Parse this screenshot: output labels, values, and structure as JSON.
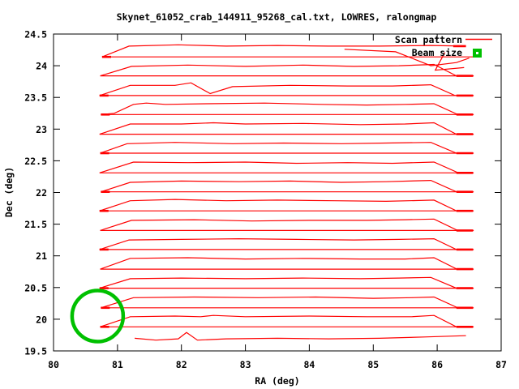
{
  "window": {
    "background": "#ffffff"
  },
  "chart_data": {
    "type": "line",
    "title": "Skynet_61052_crab_144911_95268_cal.txt, LOWRES, ralongmap",
    "xlabel": "RA (deg)",
    "ylabel": "Dec (deg)",
    "xlim": [
      80,
      87
    ],
    "ylim": [
      19.5,
      24.5
    ],
    "xticks": [
      80,
      81,
      82,
      83,
      84,
      85,
      86,
      87
    ],
    "xtick_labels": [
      "80",
      "81",
      "82",
      "83",
      "84",
      "85",
      "86",
      "87"
    ],
    "yticks": [
      19.5,
      20,
      20.5,
      21,
      21.5,
      22,
      22.5,
      23,
      23.5,
      24,
      24.5
    ],
    "ytick_labels": [
      "19.5",
      "20",
      "20.5",
      "21",
      "21.5",
      "22",
      "22.5",
      "23",
      "23.5",
      "24",
      "24.5"
    ],
    "grid": false,
    "legend_position": "top-right-inside",
    "legend": [
      {
        "label": "Scan pattern",
        "color": "#ff0000",
        "sample": "line"
      },
      {
        "label": "Beam size",
        "color": "#00c000",
        "sample": "filled-square"
      }
    ],
    "colors": {
      "scan": "#ff0000",
      "beam": "#00c000",
      "axis": "#000000"
    },
    "scan_rows": [
      {
        "dec": 24.14,
        "ra_start": 80.76,
        "ra_end": 86.57,
        "left_cap": true,
        "right_cap": "top",
        "top_path": [
          [
            80.76,
            0
          ],
          [
            81.18,
            0.17
          ],
          [
            81.95,
            0.19
          ],
          [
            82.7,
            0.17
          ],
          [
            83.5,
            0.18
          ],
          [
            84.3,
            0.17
          ],
          [
            85.1,
            0.17
          ],
          [
            85.9,
            0.18
          ],
          [
            86.42,
            0.17
          ]
        ]
      },
      {
        "dec": 23.84,
        "ra_start": 80.73,
        "ra_end": 86.57,
        "left_cap": false,
        "right_cap": "base",
        "top_path": [
          [
            80.73,
            0
          ],
          [
            81.22,
            0.15
          ],
          [
            82.1,
            0.17
          ],
          [
            83.0,
            0.15
          ],
          [
            83.9,
            0.17
          ],
          [
            84.7,
            0.15
          ],
          [
            85.4,
            0.16
          ],
          [
            85.95,
            0.18
          ],
          [
            86.3,
            0
          ],
          [
            86.56,
            0
          ]
        ]
      },
      {
        "dec": 23.53,
        "ra_start": 80.72,
        "ra_end": 86.57,
        "left_cap": true,
        "right_cap": "base",
        "top_path": [
          [
            80.72,
            0
          ],
          [
            81.2,
            0.16
          ],
          [
            81.9,
            0.16
          ],
          [
            82.15,
            0.2
          ],
          [
            82.45,
            0.03
          ],
          [
            82.8,
            0.14
          ],
          [
            83.7,
            0.16
          ],
          [
            84.6,
            0.15
          ],
          [
            85.3,
            0.15
          ],
          [
            85.9,
            0.17
          ],
          [
            86.28,
            0
          ],
          [
            86.56,
            0
          ]
        ]
      },
      {
        "dec": 23.23,
        "ra_start": 80.74,
        "ra_end": 86.57,
        "left_cap": true,
        "right_cap": "base",
        "top_path": [
          [
            80.74,
            0
          ],
          [
            80.95,
            0.02
          ],
          [
            81.25,
            0.16
          ],
          [
            81.45,
            0.18
          ],
          [
            81.75,
            0.16
          ],
          [
            82.4,
            0.17
          ],
          [
            83.3,
            0.18
          ],
          [
            84.2,
            0.16
          ],
          [
            84.9,
            0.15
          ],
          [
            85.5,
            0.16
          ],
          [
            85.95,
            0.17
          ],
          [
            86.32,
            0
          ],
          [
            86.56,
            0
          ]
        ]
      },
      {
        "dec": 22.92,
        "ra_start": 80.72,
        "ra_end": 86.57,
        "left_cap": false,
        "right_cap": "base",
        "top_path": [
          [
            80.72,
            0
          ],
          [
            81.2,
            0.16
          ],
          [
            82.0,
            0.16
          ],
          [
            82.5,
            0.18
          ],
          [
            83.0,
            0.16
          ],
          [
            83.9,
            0.17
          ],
          [
            84.8,
            0.15
          ],
          [
            85.5,
            0.16
          ],
          [
            85.95,
            0.18
          ],
          [
            86.3,
            0
          ],
          [
            86.55,
            0
          ]
        ]
      },
      {
        "dec": 22.62,
        "ra_start": 80.73,
        "ra_end": 86.57,
        "left_cap": true,
        "right_cap": "base",
        "top_path": [
          [
            80.73,
            0
          ],
          [
            81.15,
            0.15
          ],
          [
            81.9,
            0.17
          ],
          [
            82.8,
            0.15
          ],
          [
            83.6,
            0.16
          ],
          [
            84.5,
            0.15
          ],
          [
            85.2,
            0.16
          ],
          [
            85.9,
            0.17
          ],
          [
            86.3,
            0
          ],
          [
            86.56,
            0
          ]
        ]
      },
      {
        "dec": 22.31,
        "ra_start": 80.72,
        "ra_end": 86.57,
        "left_cap": false,
        "right_cap": "base",
        "top_path": [
          [
            80.72,
            0
          ],
          [
            81.25,
            0.17
          ],
          [
            82.1,
            0.16
          ],
          [
            83.0,
            0.17
          ],
          [
            83.8,
            0.15
          ],
          [
            84.6,
            0.16
          ],
          [
            85.3,
            0.15
          ],
          [
            85.95,
            0.17
          ],
          [
            86.33,
            0
          ],
          [
            86.56,
            0
          ]
        ]
      },
      {
        "dec": 22.01,
        "ra_start": 80.74,
        "ra_end": 86.57,
        "left_cap": true,
        "right_cap": "base",
        "top_path": [
          [
            80.74,
            0
          ],
          [
            81.2,
            0.15
          ],
          [
            82.0,
            0.17
          ],
          [
            82.9,
            0.16
          ],
          [
            83.7,
            0.17
          ],
          [
            84.5,
            0.15
          ],
          [
            85.2,
            0.16
          ],
          [
            85.9,
            0.18
          ],
          [
            86.3,
            0
          ],
          [
            86.55,
            0
          ]
        ]
      },
      {
        "dec": 21.71,
        "ra_start": 80.72,
        "ra_end": 86.57,
        "left_cap": true,
        "right_cap": "base",
        "top_path": [
          [
            80.72,
            0
          ],
          [
            81.2,
            0.16
          ],
          [
            81.9,
            0.18
          ],
          [
            82.7,
            0.16
          ],
          [
            83.5,
            0.17
          ],
          [
            84.4,
            0.16
          ],
          [
            85.2,
            0.15
          ],
          [
            85.95,
            0.17
          ],
          [
            86.3,
            0
          ],
          [
            86.56,
            0
          ]
        ]
      },
      {
        "dec": 21.4,
        "ra_start": 80.73,
        "ra_end": 86.57,
        "left_cap": false,
        "right_cap": "base",
        "top_path": [
          [
            80.73,
            0
          ],
          [
            81.22,
            0.16
          ],
          [
            82.2,
            0.17
          ],
          [
            83.1,
            0.15
          ],
          [
            84.0,
            0.16
          ],
          [
            84.9,
            0.16
          ],
          [
            85.5,
            0.17
          ],
          [
            85.95,
            0.18
          ],
          [
            86.32,
            0
          ],
          [
            86.56,
            0
          ]
        ]
      },
      {
        "dec": 21.1,
        "ra_start": 80.72,
        "ra_end": 86.57,
        "left_cap": true,
        "right_cap": "base",
        "top_path": [
          [
            80.72,
            0
          ],
          [
            81.18,
            0.15
          ],
          [
            82.0,
            0.16
          ],
          [
            82.9,
            0.17
          ],
          [
            83.8,
            0.16
          ],
          [
            84.7,
            0.15
          ],
          [
            85.4,
            0.16
          ],
          [
            85.95,
            0.17
          ],
          [
            86.3,
            0
          ],
          [
            86.55,
            0
          ]
        ]
      },
      {
        "dec": 20.79,
        "ra_start": 80.73,
        "ra_end": 86.57,
        "left_cap": false,
        "right_cap": "base",
        "top_path": [
          [
            80.73,
            0
          ],
          [
            81.2,
            0.17
          ],
          [
            82.1,
            0.18
          ],
          [
            83.0,
            0.16
          ],
          [
            83.9,
            0.17
          ],
          [
            84.8,
            0.16
          ],
          [
            85.5,
            0.16
          ],
          [
            85.95,
            0.18
          ],
          [
            86.31,
            0
          ],
          [
            86.56,
            0
          ]
        ]
      },
      {
        "dec": 20.49,
        "ra_start": 80.72,
        "ra_end": 86.57,
        "left_cap": true,
        "right_cap": "base",
        "top_path": [
          [
            80.72,
            0
          ],
          [
            81.2,
            0.15
          ],
          [
            82.0,
            0.16
          ],
          [
            83.0,
            0.15
          ],
          [
            83.9,
            0.16
          ],
          [
            84.8,
            0.15
          ],
          [
            85.4,
            0.16
          ],
          [
            85.9,
            0.17
          ],
          [
            86.3,
            0
          ],
          [
            86.55,
            0
          ]
        ]
      },
      {
        "dec": 20.18,
        "ra_start": 80.74,
        "ra_end": 86.57,
        "left_cap": true,
        "right_cap": "base",
        "top_path": [
          [
            80.74,
            0
          ],
          [
            81.25,
            0.16
          ],
          [
            82.2,
            0.17
          ],
          [
            83.2,
            0.16
          ],
          [
            84.1,
            0.17
          ],
          [
            85.0,
            0.15
          ],
          [
            85.6,
            0.16
          ],
          [
            85.95,
            0.17
          ],
          [
            86.32,
            0
          ],
          [
            86.56,
            0
          ]
        ]
      },
      {
        "dec": 19.88,
        "ra_start": 80.73,
        "ra_end": 86.57,
        "left_cap": true,
        "right_cap": "base",
        "top_path": [
          [
            80.73,
            0
          ],
          [
            81.2,
            0.16
          ],
          [
            81.9,
            0.17
          ],
          [
            82.3,
            0.16
          ],
          [
            82.5,
            0.18
          ],
          [
            83.0,
            0.16
          ],
          [
            84.0,
            0.17
          ],
          [
            84.9,
            0.16
          ],
          [
            85.6,
            0.16
          ],
          [
            85.95,
            0.18
          ],
          [
            86.3,
            0
          ],
          [
            86.55,
            0
          ]
        ]
      }
    ],
    "bottom_partial_scan": [
      [
        81.27,
        19.7
      ],
      [
        81.6,
        19.67
      ],
      [
        81.95,
        19.69
      ],
      [
        82.08,
        19.79
      ],
      [
        82.25,
        19.67
      ],
      [
        82.7,
        19.69
      ],
      [
        83.5,
        19.7
      ],
      [
        84.3,
        19.69
      ],
      [
        85.1,
        19.7
      ],
      [
        85.8,
        19.72
      ],
      [
        86.45,
        19.74
      ]
    ],
    "anomaly_paths": [
      [
        [
          84.55,
          24.26
        ],
        [
          85.35,
          24.22
        ],
        [
          85.9,
          24.0
        ],
        [
          86.3,
          24.05
        ],
        [
          86.5,
          24.12
        ]
      ],
      [
        [
          86.12,
          24.21
        ],
        [
          85.97,
          23.93
        ],
        [
          86.42,
          23.97
        ]
      ]
    ],
    "beam": {
      "ra": 80.69,
      "dec": 20.05,
      "radius_deg": 0.4
    }
  }
}
